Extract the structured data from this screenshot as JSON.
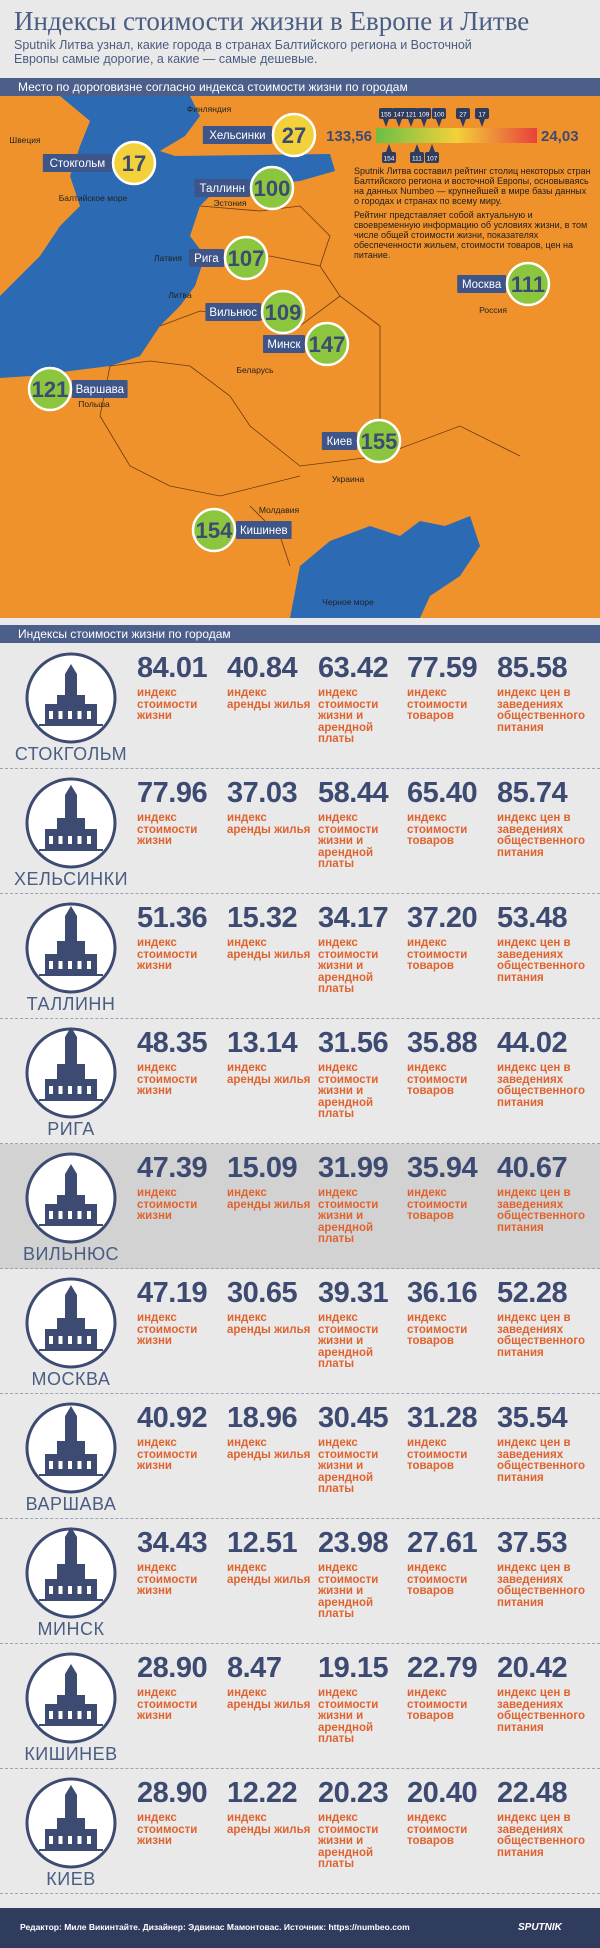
{
  "header": {
    "title": "Индексы стоимости жизни в Европе и Литве",
    "subtitle": "Sputnik Литва узнал, какие города в странах Балтийского региона и Восточной Европы самые дорогие, а какие — самые дешевые."
  },
  "map": {
    "heading": "Место по дороговизне согласно индекса стоимости жизни по городам",
    "countries": [
      "Финляндия",
      "Швеция",
      "Балтийское море",
      "Эстония",
      "Латвия",
      "Литва",
      "Беларусь",
      "Россия",
      "Польша",
      "Украина",
      "Молдавия",
      "Черное море"
    ],
    "cities": [
      {
        "name": "Хельсинки",
        "rank": 27,
        "color": "#f3d13a"
      },
      {
        "name": "Стокгольм",
        "rank": 17,
        "color": "#f3d13a"
      },
      {
        "name": "Таллинн",
        "rank": 100,
        "color": "#8cc63f"
      },
      {
        "name": "Рига",
        "rank": 107,
        "color": "#8cc63f"
      },
      {
        "name": "Вильнюс",
        "rank": 109,
        "color": "#8cc63f"
      },
      {
        "name": "Минск",
        "rank": 147,
        "color": "#8cc63f"
      },
      {
        "name": "Москва",
        "rank": 111,
        "color": "#8cc63f"
      },
      {
        "name": "Варшава",
        "rank": 121,
        "color": "#8cc63f"
      },
      {
        "name": "Киев",
        "rank": 155,
        "color": "#8cc63f"
      },
      {
        "name": "Кишинев",
        "rank": 154,
        "color": "#8cc63f"
      }
    ],
    "scale": {
      "max_label": "133,56",
      "min_label": "24,03",
      "top_markers": [
        155,
        147,
        121,
        109,
        100,
        27,
        17
      ],
      "bottom_markers": [
        154,
        111,
        107
      ]
    },
    "description": [
      "Sputnik Литва составил рейтинг столиц некоторых стран Балтийского региона и восточной Европы, основываясь на данных Numbeo — крупнейшей в мире базы данных о городах и странах по всему миру.",
      "Рейтинг представляет собой актуальную и своевременную информацию об условиях жизни, в том числе общей стоимости жизни, показателях обеспеченности жильем, стоимости товаров, цен на питание."
    ]
  },
  "table": {
    "heading": "Индексы стоимости жизни по городам",
    "columns": [
      "индекс стоимости жизни",
      "индекс аренды жилья",
      "индекс стоимости жизни и арендной платы",
      "индекс стоимости товаров",
      "индекс цен в заведениях общественного питания"
    ],
    "rows": [
      {
        "city": "СТОКГОЛЬМ",
        "values": [
          "84.01",
          "40.84",
          "63.42",
          "77.59",
          "85.58"
        ]
      },
      {
        "city": "ХЕЛЬСИНКИ",
        "values": [
          "77.96",
          "37.03",
          "58.44",
          "65.40",
          "85.74"
        ]
      },
      {
        "city": "ТАЛЛИНН",
        "values": [
          "51.36",
          "15.32",
          "34.17",
          "37.20",
          "53.48"
        ]
      },
      {
        "city": "РИГА",
        "values": [
          "48.35",
          "13.14",
          "31.56",
          "35.88",
          "44.02"
        ]
      },
      {
        "city": "ВИЛЬНЮС",
        "values": [
          "47.39",
          "15.09",
          "31.99",
          "35.94",
          "40.67"
        ],
        "highlight": true
      },
      {
        "city": "МОСКВА",
        "values": [
          "47.19",
          "30.65",
          "39.31",
          "36.16",
          "52.28"
        ]
      },
      {
        "city": "ВАРШАВА",
        "values": [
          "40.92",
          "18.96",
          "30.45",
          "31.28",
          "35.54"
        ]
      },
      {
        "city": "МИНСК",
        "values": [
          "34.43",
          "12.51",
          "23.98",
          "27.61",
          "37.53"
        ]
      },
      {
        "city": "КИШИНЕВ",
        "values": [
          "28.90",
          "8.47",
          "19.15",
          "22.79",
          "20.42"
        ]
      },
      {
        "city": "КИЕВ",
        "values": [
          "28.90",
          "12.22",
          "20.23",
          "20.40",
          "22.48"
        ]
      }
    ]
  },
  "footer": {
    "credits": "Редактор: Миле Викинтайте. Дизайнер: Эдвинас Мамонтовас. Источник: https://numbeo.com",
    "logo": "SPUTNIK"
  }
}
